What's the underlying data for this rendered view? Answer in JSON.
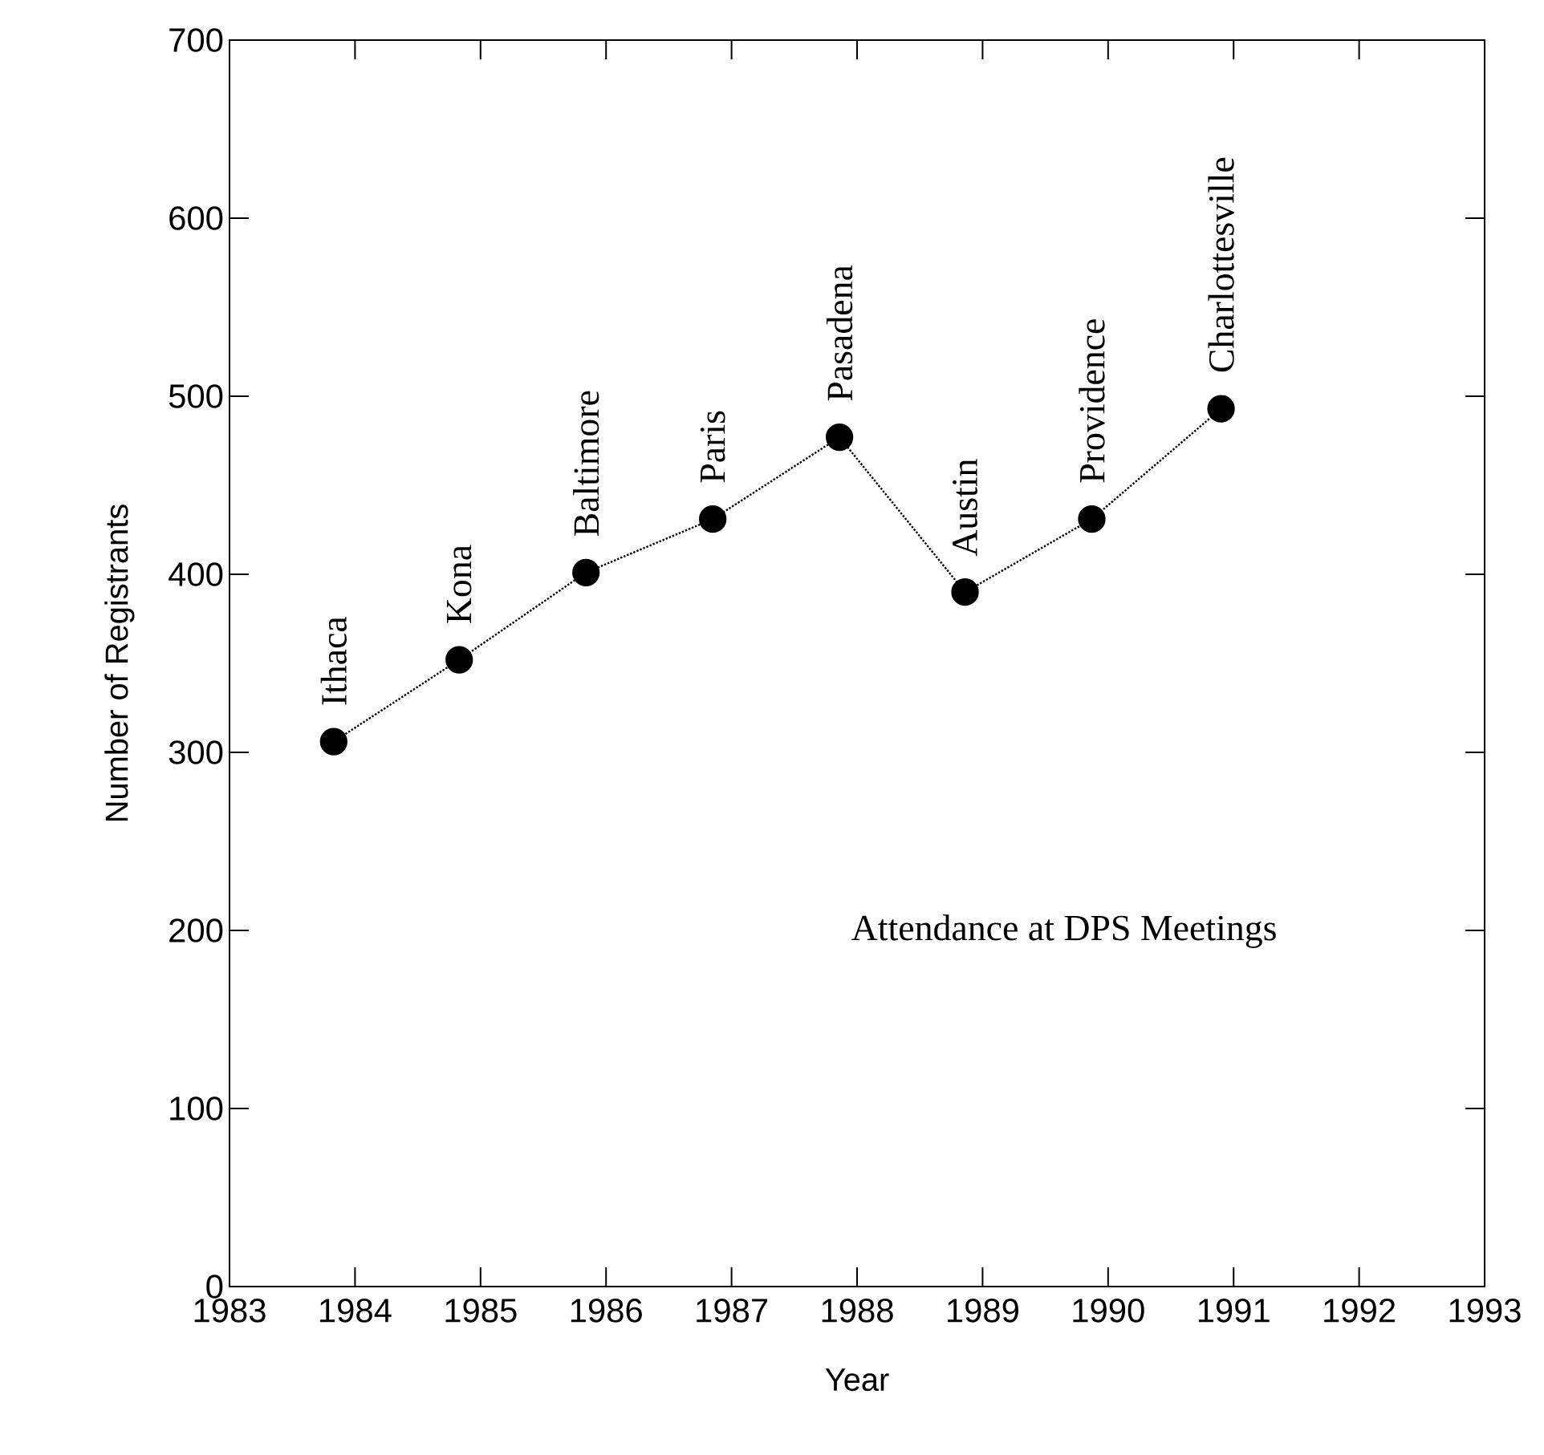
{
  "chart_data": {
    "type": "line",
    "title": "Attendance at DPS Meetings",
    "xlabel": "Year",
    "ylabel": "Number of Registrants",
    "x": [
      1983.83,
      1984.83,
      1985.84,
      1986.85,
      1987.86,
      1988.86,
      1989.87,
      1990.9
    ],
    "series": [
      {
        "color": "#000000",
        "values": [
          306,
          352,
          401,
          431,
          477,
          390,
          431,
          493
        ]
      }
    ],
    "annotations": [
      {
        "text": "Ithaca",
        "x": 1983.83,
        "y": 306
      },
      {
        "text": "Kona",
        "x": 1984.83,
        "y": 352
      },
      {
        "text": "Baltimore",
        "x": 1985.84,
        "y": 401
      },
      {
        "text": "Paris",
        "x": 1986.85,
        "y": 431
      },
      {
        "text": "Pasadena",
        "x": 1987.86,
        "y": 477
      },
      {
        "text": "Austin",
        "x": 1988.86,
        "y": 390
      },
      {
        "text": "Providence",
        "x": 1989.87,
        "y": 431
      },
      {
        "text": "Charlottesville",
        "x": 1990.9,
        "y": 493
      }
    ],
    "xlim": [
      1983,
      1993
    ],
    "xticks": [
      1983,
      1984,
      1985,
      1986,
      1987,
      1988,
      1989,
      1990,
      1991,
      1992,
      1993
    ],
    "ylim": [
      0,
      700
    ],
    "yticks": [
      0,
      100,
      200,
      300,
      400,
      500,
      600,
      700
    ],
    "marker": "circle",
    "line_style": "dotted",
    "grid": false
  }
}
